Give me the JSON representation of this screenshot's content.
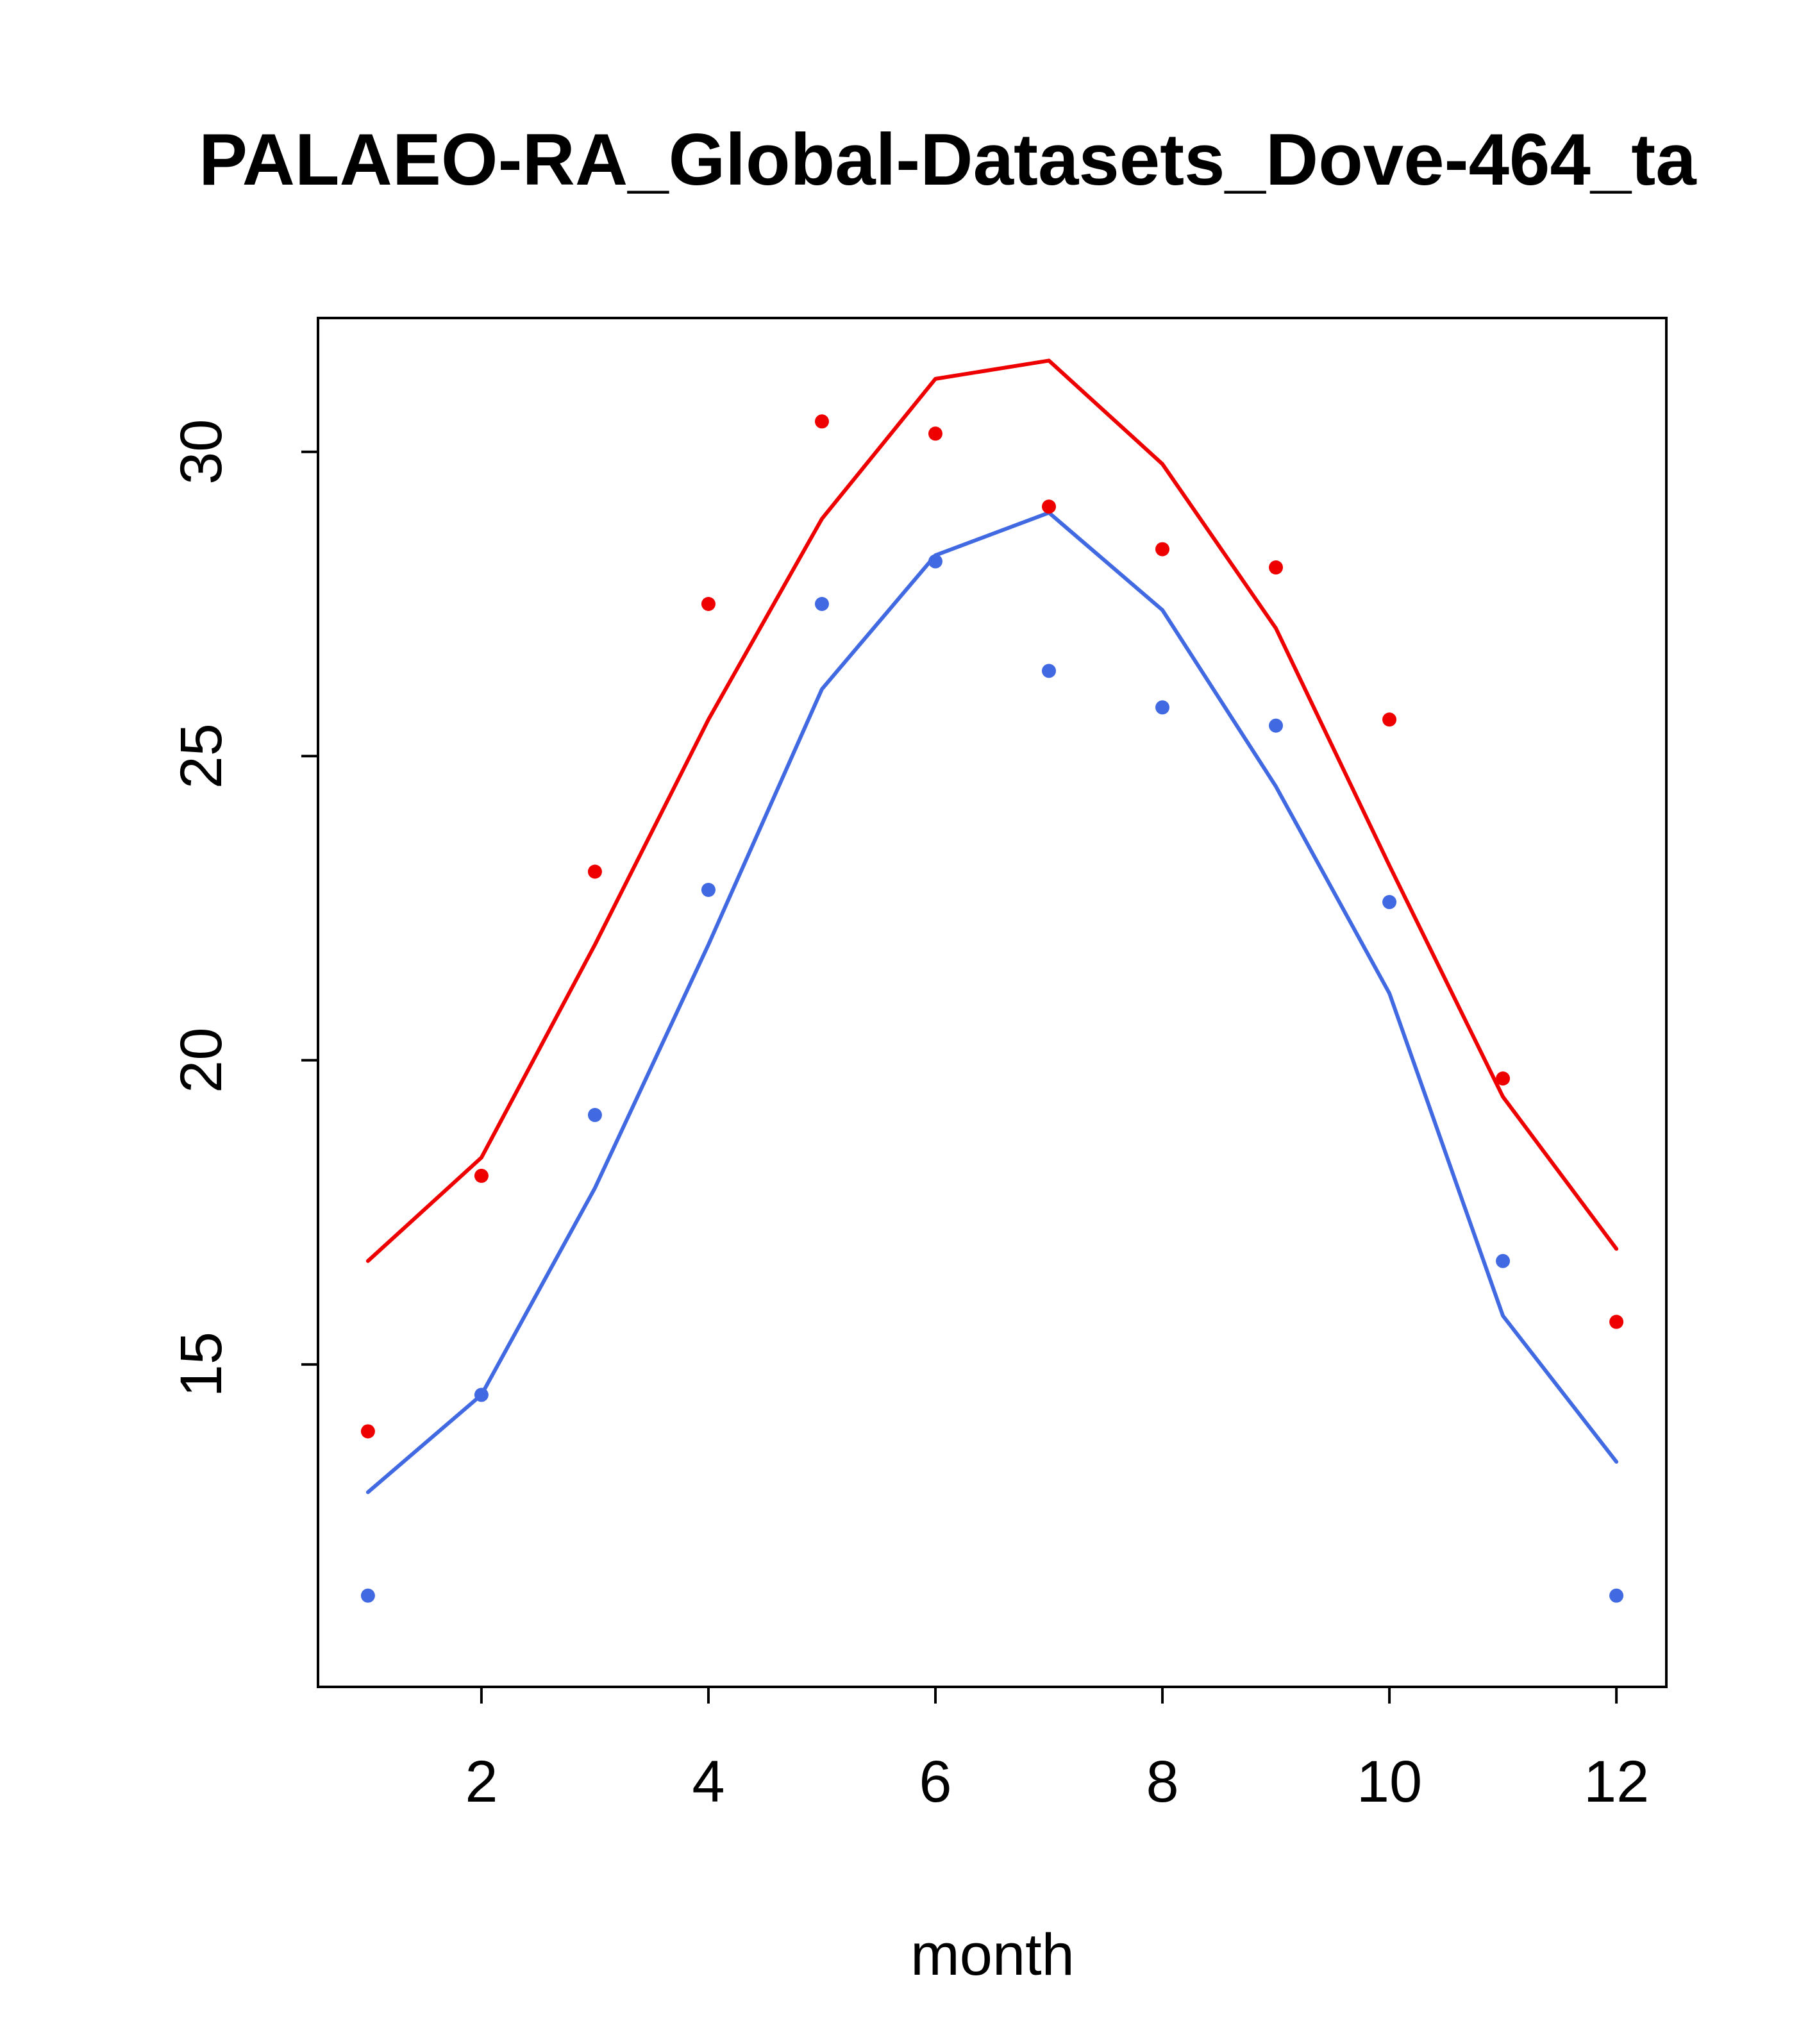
{
  "title": "PALAEO-RA_Global-Datasets_Dove-464_ta",
  "chart_data": {
    "type": "line",
    "title": "PALAEO-RA_Global-Datasets_Dove-464_ta",
    "xlabel": "month",
    "ylabel": "",
    "x": [
      1,
      2,
      3,
      4,
      5,
      6,
      7,
      8,
      9,
      10,
      11,
      12
    ],
    "xlim": [
      0.56,
      12.44
    ],
    "ylim": [
      9.7,
      32.2
    ],
    "xticks": [
      2,
      4,
      6,
      8,
      10,
      12
    ],
    "yticks": [
      15,
      20,
      25,
      30
    ],
    "grid": false,
    "legend": false,
    "series": [
      {
        "name": "red-line",
        "type": "line",
        "color": "#EE0000",
        "values": [
          16.7,
          18.4,
          21.9,
          25.6,
          28.9,
          31.2,
          31.5,
          29.8,
          27.1,
          23.2,
          19.4,
          16.9
        ]
      },
      {
        "name": "blue-line",
        "type": "line",
        "color": "#4169E1",
        "values": [
          12.9,
          14.5,
          17.9,
          21.9,
          26.1,
          28.3,
          29.0,
          27.4,
          24.5,
          21.1,
          15.8,
          13.4
        ]
      },
      {
        "name": "red-points",
        "type": "scatter",
        "color": "#EE0000",
        "values": [
          13.9,
          18.1,
          23.1,
          27.5,
          30.5,
          30.3,
          29.1,
          28.4,
          28.1,
          25.6,
          19.7,
          15.7
        ]
      },
      {
        "name": "blue-points",
        "type": "scatter",
        "color": "#4169E1",
        "values": [
          11.2,
          14.5,
          19.1,
          22.8,
          27.5,
          28.2,
          26.4,
          25.8,
          25.5,
          22.6,
          16.7,
          11.2
        ]
      }
    ],
    "colors": {
      "warm_series": "#EE0000",
      "cool_series": "#4169E1",
      "axis": "#000000",
      "background": "#FFFFFF"
    }
  }
}
